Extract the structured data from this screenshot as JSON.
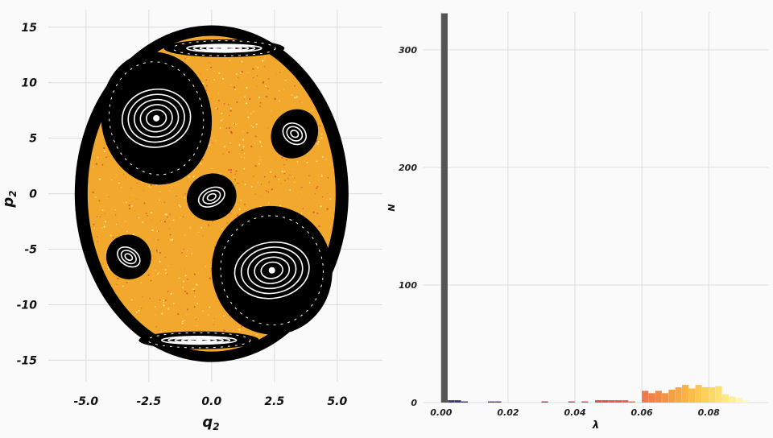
{
  "chart_data": [
    {
      "type": "scatter",
      "xlabel": "q",
      "xlabel_sub": "2",
      "ylabel": "p",
      "ylabel_sub": "2",
      "xlim": [
        -6.5,
        6.8
      ],
      "ylim": [
        -17,
        16
      ],
      "xticks": [
        -5.0,
        -2.5,
        0.0,
        2.5,
        5.0
      ],
      "xtick_labels": [
        "-5.0",
        "-2.5",
        "0.0",
        "2.5",
        "5.0"
      ],
      "yticks": [
        -15,
        -10,
        -5,
        0,
        5,
        10,
        15
      ],
      "ytick_labels": [
        "-15",
        "-10",
        "-5",
        "0",
        "5",
        "10",
        "15"
      ],
      "grid": true,
      "colors": {
        "chaotic_sea": "#f2a82c",
        "regular": "#000000",
        "island_line": "#ffffff",
        "speckle": "#d45a3c"
      },
      "regions": [
        {
          "kind": "chaotic-sea",
          "center": [
            0,
            0
          ],
          "rx": 5.0,
          "ry": 14.8
        },
        {
          "kind": "island",
          "center": [
            -2.2,
            6.8
          ],
          "rx": 2.2,
          "ry": 6.0
        },
        {
          "kind": "island",
          "center": [
            2.4,
            -6.9
          ],
          "rx": 2.4,
          "ry": 5.8
        },
        {
          "kind": "island",
          "center": [
            0.0,
            -0.3
          ],
          "rx": 1.0,
          "ry": 2.1
        },
        {
          "kind": "island",
          "center": [
            3.3,
            5.4
          ],
          "rx": 0.9,
          "ry": 2.3
        },
        {
          "kind": "island",
          "center": [
            -3.3,
            -5.7
          ],
          "rx": 0.9,
          "ry": 2.0
        },
        {
          "kind": "island",
          "center": [
            0.5,
            13.1
          ],
          "rx": 2.4,
          "ry": 0.8
        },
        {
          "kind": "island",
          "center": [
            -0.5,
            -13.2
          ],
          "rx": 2.4,
          "ry": 0.8
        }
      ]
    },
    {
      "type": "bar",
      "xlabel": "λ",
      "ylabel": "N",
      "xlim": [
        -0.0055,
        0.098
      ],
      "ylim": [
        0,
        330
      ],
      "xticks": [
        0.0,
        0.02,
        0.04,
        0.06,
        0.08
      ],
      "xtick_labels": [
        "0.00",
        "0.02",
        "0.04",
        "0.06",
        "0.08"
      ],
      "yticks": [
        0,
        100,
        200,
        300
      ],
      "ytick_labels": [
        "0",
        "100",
        "200",
        "300"
      ],
      "grid": true,
      "bin_width": 0.002,
      "bins": [
        {
          "x0": 0.0,
          "count": 331,
          "color": "#555555"
        },
        {
          "x0": 0.002,
          "count": 2,
          "color": "#3d3d6b"
        },
        {
          "x0": 0.004,
          "count": 2,
          "color": "#3d3d6b"
        },
        {
          "x0": 0.006,
          "count": 1,
          "color": "#3d3d6b"
        },
        {
          "x0": 0.014,
          "count": 1,
          "color": "#5a3d8a"
        },
        {
          "x0": 0.016,
          "count": 1,
          "color": "#5a3d8a"
        },
        {
          "x0": 0.03,
          "count": 1,
          "color": "#b83a6a"
        },
        {
          "x0": 0.038,
          "count": 1,
          "color": "#c54662"
        },
        {
          "x0": 0.042,
          "count": 1,
          "color": "#cf4d5a"
        },
        {
          "x0": 0.046,
          "count": 2,
          "color": "#d85454"
        },
        {
          "x0": 0.048,
          "count": 2,
          "color": "#d85454"
        },
        {
          "x0": 0.05,
          "count": 2,
          "color": "#dd5b50"
        },
        {
          "x0": 0.052,
          "count": 2,
          "color": "#e0604e"
        },
        {
          "x0": 0.054,
          "count": 2,
          "color": "#e3664c"
        },
        {
          "x0": 0.056,
          "count": 1,
          "color": "#e66b4a"
        },
        {
          "x0": 0.06,
          "count": 10,
          "color": "#ec7a4a"
        },
        {
          "x0": 0.062,
          "count": 8,
          "color": "#ee8048"
        },
        {
          "x0": 0.064,
          "count": 10,
          "color": "#f08a46"
        },
        {
          "x0": 0.066,
          "count": 8,
          "color": "#f39444"
        },
        {
          "x0": 0.068,
          "count": 11,
          "color": "#f59e42"
        },
        {
          "x0": 0.07,
          "count": 13,
          "color": "#f7a842"
        },
        {
          "x0": 0.072,
          "count": 15,
          "color": "#f9b244"
        },
        {
          "x0": 0.074,
          "count": 12,
          "color": "#fabd4a"
        },
        {
          "x0": 0.076,
          "count": 15,
          "color": "#fbc750"
        },
        {
          "x0": 0.078,
          "count": 13,
          "color": "#fcd05a"
        },
        {
          "x0": 0.08,
          "count": 13,
          "color": "#fcd866"
        },
        {
          "x0": 0.082,
          "count": 14,
          "color": "#fde072"
        },
        {
          "x0": 0.084,
          "count": 7,
          "color": "#fde880"
        },
        {
          "x0": 0.086,
          "count": 5,
          "color": "#feef95"
        },
        {
          "x0": 0.088,
          "count": 4,
          "color": "#fff5aa"
        },
        {
          "x0": 0.09,
          "count": 2,
          "color": "#fff8b8"
        }
      ]
    }
  ]
}
